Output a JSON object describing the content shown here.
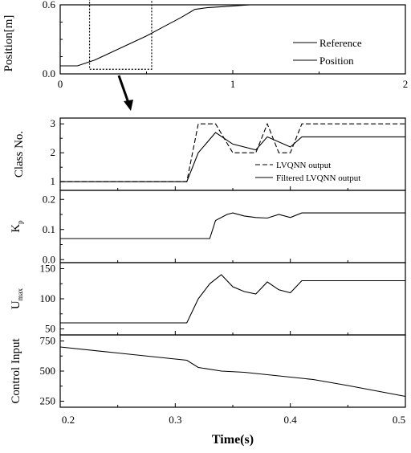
{
  "chart_data": [
    {
      "panel": "top",
      "type": "line",
      "ylabel": "Position[m]",
      "xlim": [
        0,
        2
      ],
      "ylim": [
        0,
        0.6
      ],
      "x_ticks": [
        "0",
        "1",
        "2"
      ],
      "y_ticks": [
        "0.0",
        "0.6"
      ],
      "legend": {
        "placement": "right",
        "entries": [
          "Reference",
          "Position"
        ]
      },
      "series": [
        {
          "name": "Reference",
          "x": [
            0,
            2
          ],
          "y": [
            0.6,
            0.6
          ]
        },
        {
          "name": "Position",
          "x": [
            0,
            0.1,
            0.2,
            0.3,
            0.4,
            0.5,
            0.6,
            0.7,
            0.78,
            0.85,
            0.95,
            1.1
          ],
          "y": [
            0.07,
            0.07,
            0.12,
            0.19,
            0.26,
            0.33,
            0.41,
            0.49,
            0.56,
            0.575,
            0.585,
            0.6
          ]
        }
      ],
      "zoom_box": {
        "x": [
          0.17,
          0.53
        ],
        "y": [
          0.04,
          0.65
        ]
      }
    },
    {
      "panel": "class",
      "type": "line",
      "ylabel": "Class No.",
      "xlim": [
        0.2,
        0.5
      ],
      "ylim": [
        0.7,
        3.2
      ],
      "y_ticks": [
        "1",
        "2",
        "3"
      ],
      "legend": {
        "placement": "bottom-right",
        "entries": [
          "LVQNN output",
          "Filtered LVQNN output"
        ]
      },
      "series": [
        {
          "name": "LVQNN output",
          "x": [
            0.2,
            0.31,
            0.32,
            0.335,
            0.35,
            0.37,
            0.38,
            0.39,
            0.4,
            0.41,
            0.5
          ],
          "y": [
            1,
            1,
            3,
            3,
            2,
            2,
            3,
            2,
            2,
            3,
            3
          ]
        },
        {
          "name": "Filtered LVQNN output",
          "x": [
            0.2,
            0.31,
            0.32,
            0.335,
            0.35,
            0.37,
            0.38,
            0.4,
            0.41,
            0.5
          ],
          "y": [
            1,
            1,
            2.0,
            2.7,
            2.3,
            2.1,
            2.55,
            2.2,
            2.55,
            2.55
          ]
        }
      ]
    },
    {
      "panel": "kp",
      "type": "line",
      "ylabel": "K",
      "ylabel_sub": "p",
      "xlim": [
        0.2,
        0.5
      ],
      "ylim": [
        -0.01,
        0.23
      ],
      "y_ticks": [
        "0.0",
        "0.1",
        "0.2"
      ],
      "series": [
        {
          "x": [
            0.2,
            0.33,
            0.335,
            0.345,
            0.35,
            0.36,
            0.37,
            0.38,
            0.39,
            0.4,
            0.41,
            0.5
          ],
          "y": [
            0.07,
            0.07,
            0.13,
            0.15,
            0.155,
            0.145,
            0.14,
            0.138,
            0.15,
            0.14,
            0.155,
            0.155
          ]
        }
      ]
    },
    {
      "panel": "umax",
      "type": "line",
      "ylabel": "U",
      "ylabel_sub": "max",
      "xlim": [
        0.2,
        0.5
      ],
      "ylim": [
        40,
        160
      ],
      "y_ticks": [
        "50",
        "100",
        "150"
      ],
      "series": [
        {
          "x": [
            0.2,
            0.31,
            0.32,
            0.33,
            0.34,
            0.35,
            0.36,
            0.37,
            0.38,
            0.39,
            0.4,
            0.41,
            0.5
          ],
          "y": [
            60,
            60,
            100,
            125,
            140,
            120,
            112,
            108,
            128,
            115,
            110,
            130,
            130
          ]
        }
      ]
    },
    {
      "panel": "control",
      "type": "line",
      "ylabel": "Control Input",
      "xlabel": "Time(s)",
      "xlim": [
        0.2,
        0.5
      ],
      "ylim": [
        200,
        800
      ],
      "x_ticks": [
        "0.2",
        "0.3",
        "0.4",
        "0.5"
      ],
      "y_ticks": [
        "250",
        "500",
        "750"
      ],
      "series": [
        {
          "x": [
            0.2,
            0.25,
            0.3,
            0.31,
            0.32,
            0.34,
            0.36,
            0.38,
            0.4,
            0.42,
            0.45,
            0.5
          ],
          "y": [
            700,
            650,
            600,
            590,
            530,
            500,
            490,
            470,
            450,
            430,
            380,
            290
          ]
        }
      ]
    }
  ]
}
